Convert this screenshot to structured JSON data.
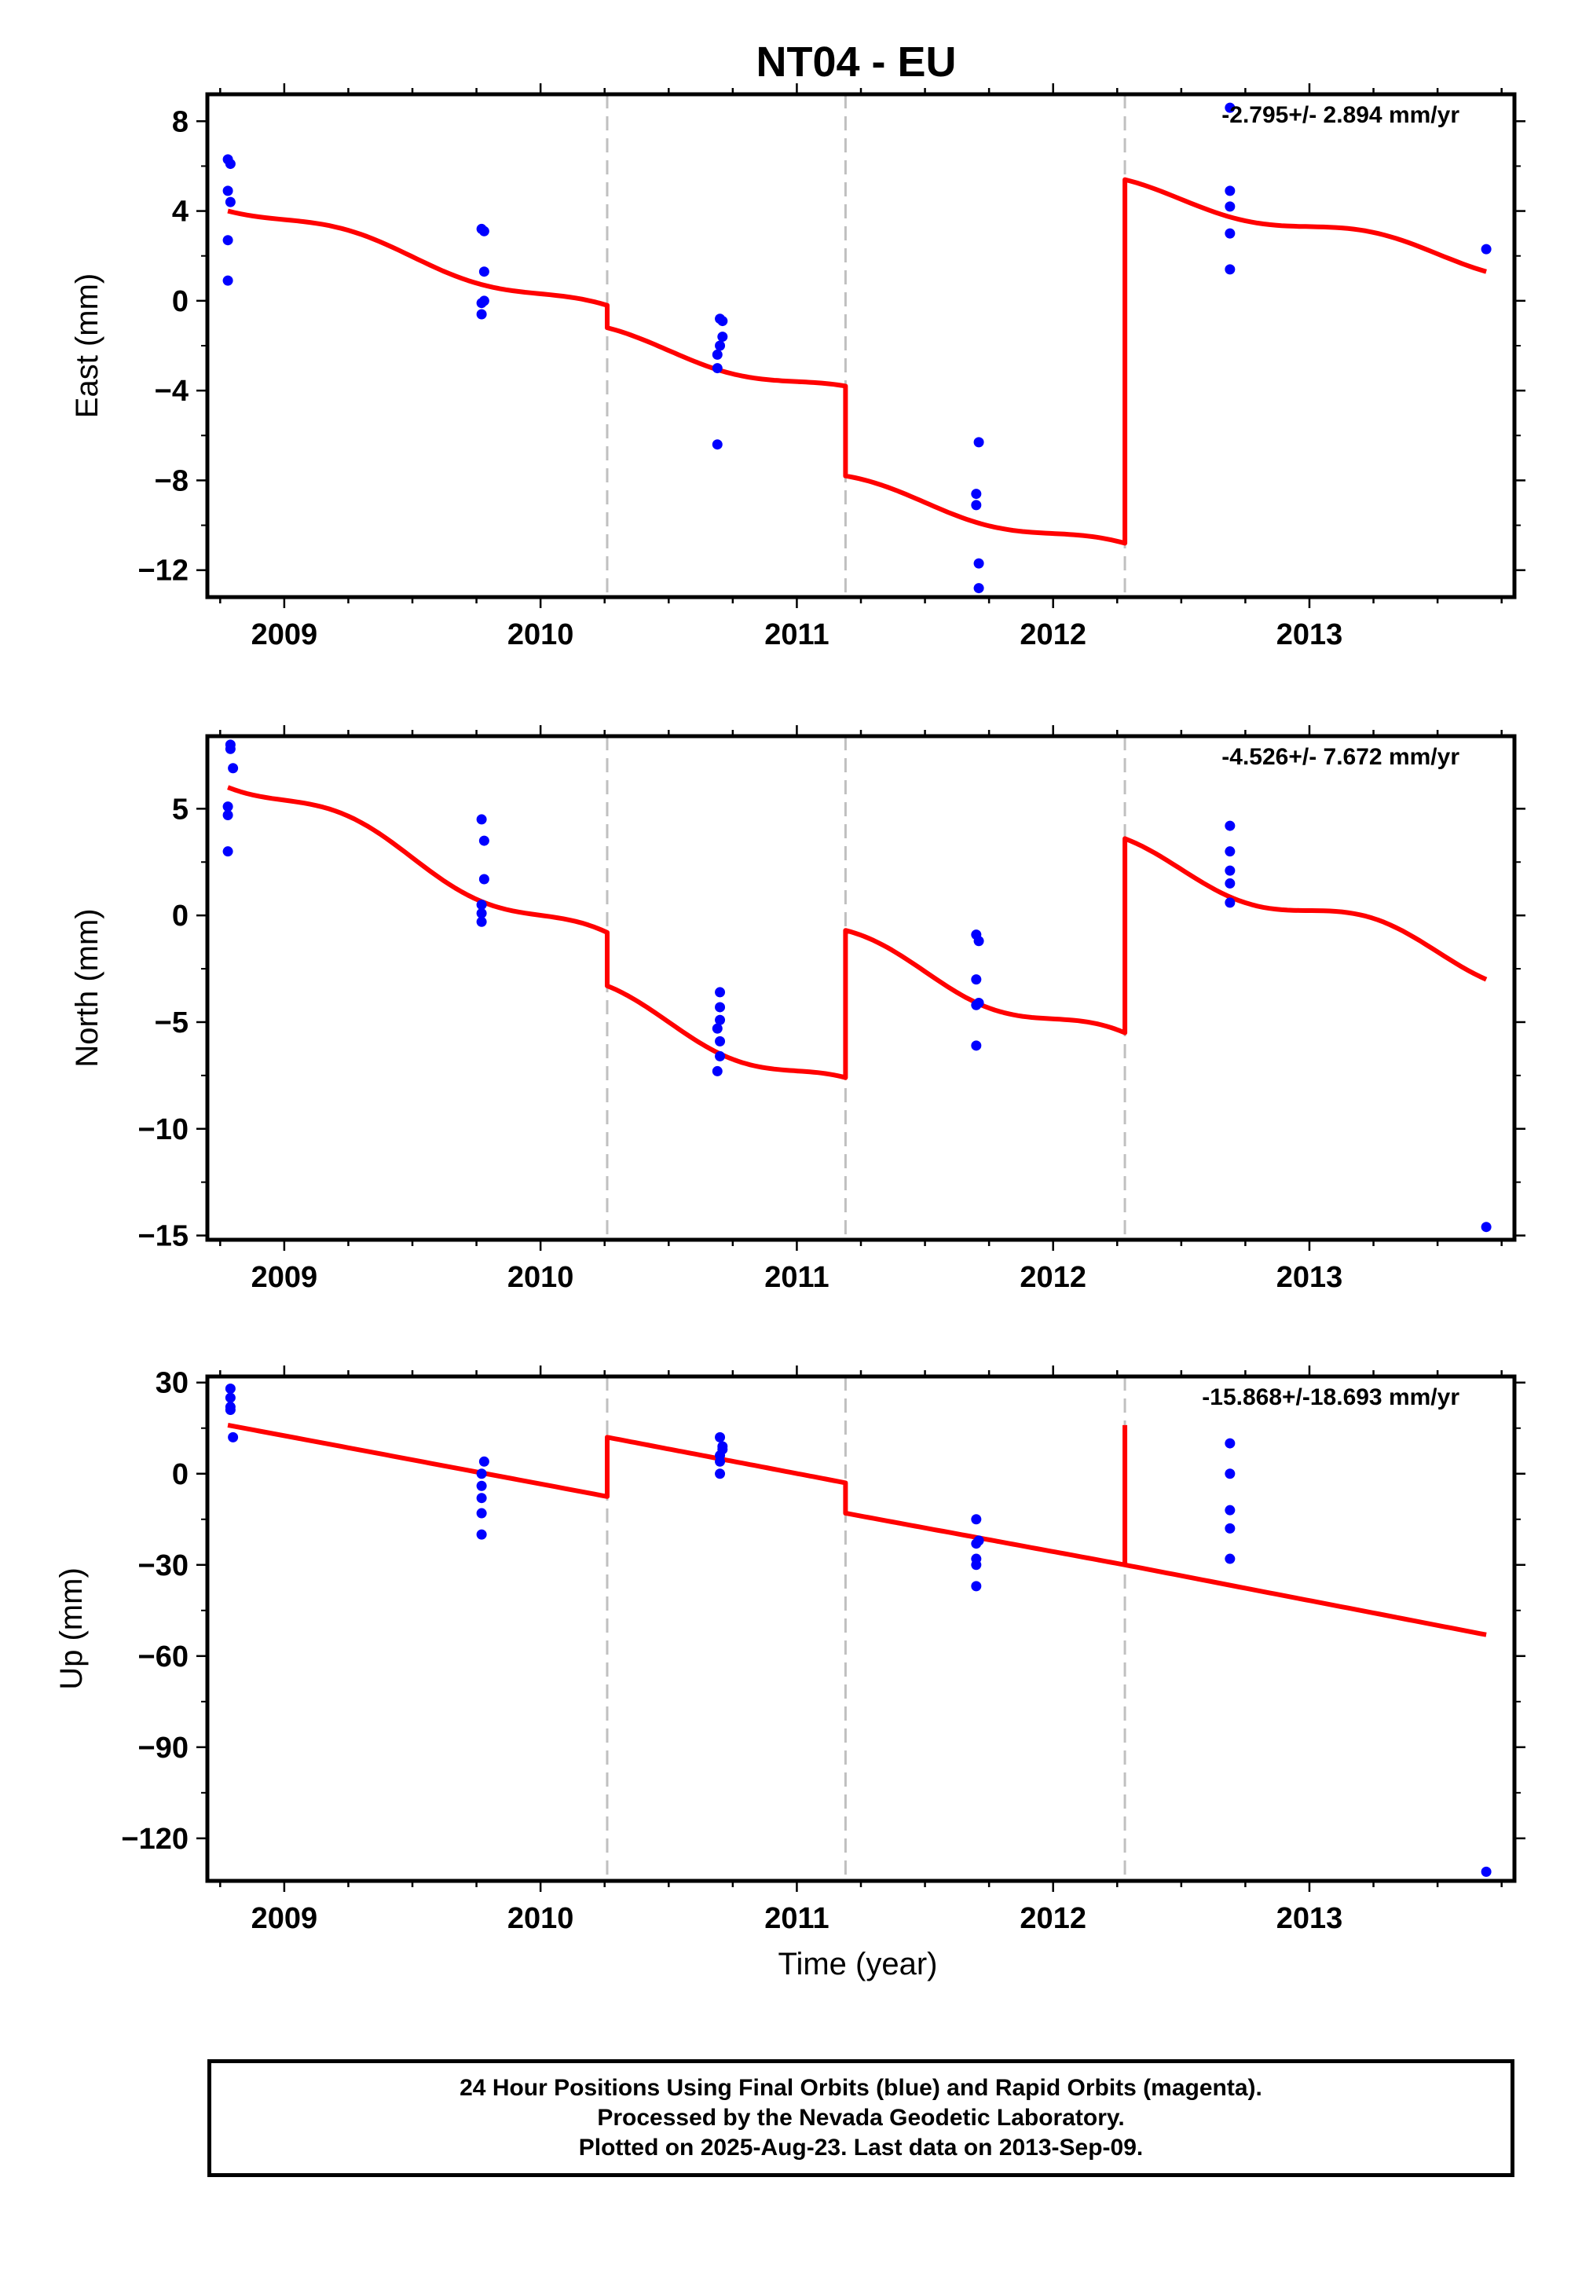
{
  "title": "NT04 - EU",
  "xlabel": "Time (year)",
  "footer": {
    "line1": "24 Hour Positions Using Final Orbits (blue) and Rapid Orbits (magenta).",
    "line2": "Processed by the Nevada Geodetic Laboratory.",
    "line3": "Plotted on 2025-Aug-23. Last data on 2013-Sep-09."
  },
  "colors": {
    "data": "#0000ff",
    "model": "#ff0000",
    "breaks": "#c0c0c0",
    "frame": "#000000"
  },
  "chart_data": [
    {
      "type": "scatter",
      "name": "east",
      "ylabel": "East (mm)",
      "rate": "-2.795+/- 2.894 mm/yr",
      "xlim": [
        2008.7,
        2013.8
      ],
      "ylim": [
        -13.2,
        9.2
      ],
      "xticks": [
        2009,
        2010,
        2011,
        2012,
        2013
      ],
      "xtick_labels": [
        "2009",
        "2010",
        "2011",
        "2012",
        "2013"
      ],
      "yticks": [
        -12,
        -8,
        -4,
        0,
        4,
        8
      ],
      "ytick_labels": [
        "−12",
        "−8",
        "−4",
        "0",
        "4",
        "8"
      ],
      "breaks": [
        2010.26,
        2011.19,
        2012.28
      ],
      "points": [
        [
          2008.78,
          6.3
        ],
        [
          2008.79,
          6.1
        ],
        [
          2008.78,
          4.9
        ],
        [
          2008.79,
          4.4
        ],
        [
          2008.78,
          2.7
        ],
        [
          2008.78,
          0.9
        ],
        [
          2009.77,
          3.2
        ],
        [
          2009.78,
          3.1
        ],
        [
          2009.78,
          1.3
        ],
        [
          2009.78,
          0.0
        ],
        [
          2009.77,
          -0.1
        ],
        [
          2009.77,
          -0.6
        ],
        [
          2010.7,
          -0.8
        ],
        [
          2010.71,
          -0.9
        ],
        [
          2010.71,
          -1.6
        ],
        [
          2010.7,
          -2.0
        ],
        [
          2010.69,
          -2.4
        ],
        [
          2010.69,
          -3.0
        ],
        [
          2010.69,
          -6.4
        ],
        [
          2011.71,
          -6.3
        ],
        [
          2011.7,
          -8.6
        ],
        [
          2011.7,
          -9.1
        ],
        [
          2011.71,
          -11.7
        ],
        [
          2011.71,
          -12.8
        ],
        [
          2012.69,
          8.6
        ],
        [
          2012.69,
          4.9
        ],
        [
          2012.69,
          4.2
        ],
        [
          2012.69,
          3.0
        ],
        [
          2012.69,
          1.4
        ],
        [
          2013.69,
          2.3
        ]
      ],
      "model_segments": [
        {
          "start": 2008.78,
          "end": 2010.26,
          "start_value": 4.0,
          "end_value": -0.2
        },
        {
          "start": 2010.26,
          "end": 2011.19,
          "start_value": -1.2,
          "end_value": -3.8
        },
        {
          "start": 2011.19,
          "end": 2012.28,
          "start_value": -7.8,
          "end_value": -10.8
        },
        {
          "start": 2012.28,
          "end": 2013.69,
          "start_value": 5.4,
          "end_value": 1.3
        }
      ],
      "seasonal_amplitude": 0.35
    },
    {
      "type": "scatter",
      "name": "north",
      "ylabel": "North (mm)",
      "rate": "-4.526+/- 7.672 mm/yr",
      "xlim": [
        2008.7,
        2013.8
      ],
      "ylim": [
        -15.2,
        8.4
      ],
      "xticks": [
        2009,
        2010,
        2011,
        2012,
        2013
      ],
      "xtick_labels": [
        "2009",
        "2010",
        "2011",
        "2012",
        "2013"
      ],
      "yticks": [
        -15,
        -10,
        -5,
        0,
        5
      ],
      "ytick_labels": [
        "−15",
        "−10",
        "−5",
        "0",
        "5"
      ],
      "breaks": [
        2010.26,
        2011.19,
        2012.28
      ],
      "points": [
        [
          2008.79,
          8.0
        ],
        [
          2008.79,
          7.8
        ],
        [
          2008.8,
          6.9
        ],
        [
          2008.78,
          5.1
        ],
        [
          2008.78,
          4.7
        ],
        [
          2008.78,
          3.0
        ],
        [
          2009.77,
          4.5
        ],
        [
          2009.78,
          3.5
        ],
        [
          2009.78,
          1.7
        ],
        [
          2009.77,
          0.5
        ],
        [
          2009.77,
          0.1
        ],
        [
          2009.77,
          -0.3
        ],
        [
          2010.7,
          -3.6
        ],
        [
          2010.7,
          -4.3
        ],
        [
          2010.7,
          -4.9
        ],
        [
          2010.69,
          -5.3
        ],
        [
          2010.7,
          -5.9
        ],
        [
          2010.7,
          -6.6
        ],
        [
          2010.69,
          -7.3
        ],
        [
          2011.7,
          -0.9
        ],
        [
          2011.71,
          -1.2
        ],
        [
          2011.7,
          -3.0
        ],
        [
          2011.71,
          -4.1
        ],
        [
          2011.7,
          -4.2
        ],
        [
          2011.7,
          -6.1
        ],
        [
          2012.69,
          4.2
        ],
        [
          2012.69,
          3.0
        ],
        [
          2012.69,
          2.1
        ],
        [
          2012.69,
          1.5
        ],
        [
          2012.69,
          0.6
        ],
        [
          2013.69,
          -14.6
        ]
      ],
      "model_segments": [
        {
          "start": 2008.78,
          "end": 2010.26,
          "start_value": 6.0,
          "end_value": -0.8
        },
        {
          "start": 2010.26,
          "end": 2011.19,
          "start_value": -3.3,
          "end_value": -7.6
        },
        {
          "start": 2011.19,
          "end": 2012.28,
          "start_value": -0.7,
          "end_value": -5.5
        },
        {
          "start": 2012.28,
          "end": 2013.69,
          "start_value": 3.6,
          "end_value": -3.0
        }
      ],
      "seasonal_amplitude": 0.6
    },
    {
      "type": "scatter",
      "name": "up",
      "ylabel": "Up (mm)",
      "rate": "-15.868+/-18.693 mm/yr",
      "xlim": [
        2008.7,
        2013.8
      ],
      "ylim": [
        -134,
        32
      ],
      "xticks": [
        2009,
        2010,
        2011,
        2012,
        2013
      ],
      "xtick_labels": [
        "2009",
        "2010",
        "2011",
        "2012",
        "2013"
      ],
      "yticks": [
        -120,
        -90,
        -60,
        -30,
        0,
        30
      ],
      "ytick_labels": [
        "−120",
        "−90",
        "−60",
        "−30",
        "0",
        "30"
      ],
      "breaks": [
        2010.26,
        2011.19,
        2012.28
      ],
      "points": [
        [
          2008.79,
          28
        ],
        [
          2008.79,
          25
        ],
        [
          2008.79,
          22
        ],
        [
          2008.79,
          21
        ],
        [
          2008.8,
          12
        ],
        [
          2009.78,
          4
        ],
        [
          2009.77,
          0
        ],
        [
          2009.77,
          -4
        ],
        [
          2009.77,
          -8
        ],
        [
          2009.77,
          -13
        ],
        [
          2009.77,
          -20
        ],
        [
          2010.7,
          12
        ],
        [
          2010.71,
          9
        ],
        [
          2010.71,
          8
        ],
        [
          2010.7,
          6
        ],
        [
          2010.7,
          4
        ],
        [
          2010.7,
          0
        ],
        [
          2011.7,
          -15
        ],
        [
          2011.71,
          -22
        ],
        [
          2011.7,
          -23
        ],
        [
          2011.7,
          -28
        ],
        [
          2011.7,
          -30
        ],
        [
          2011.7,
          -37
        ],
        [
          2012.69,
          10
        ],
        [
          2012.69,
          0
        ],
        [
          2012.69,
          -12
        ],
        [
          2012.69,
          -18
        ],
        [
          2012.69,
          -28
        ],
        [
          2013.69,
          -131
        ]
      ],
      "model_segments": [
        {
          "start": 2008.78,
          "end": 2010.26,
          "start_value": 16,
          "end_value": -7.5
        },
        {
          "start": 2010.26,
          "end": 2011.19,
          "start_value": 12,
          "end_value": -3
        },
        {
          "start": 2011.19,
          "end": 2012.28,
          "start_value": -13,
          "end_value": -30
        },
        {
          "start": 2012.28,
          "end": 2013.69,
          "start_value": -30,
          "end_value": -53
        }
      ],
      "spike": {
        "x": 2012.28,
        "top": 16,
        "bottom": -30
      },
      "seasonal_amplitude": 0
    }
  ]
}
